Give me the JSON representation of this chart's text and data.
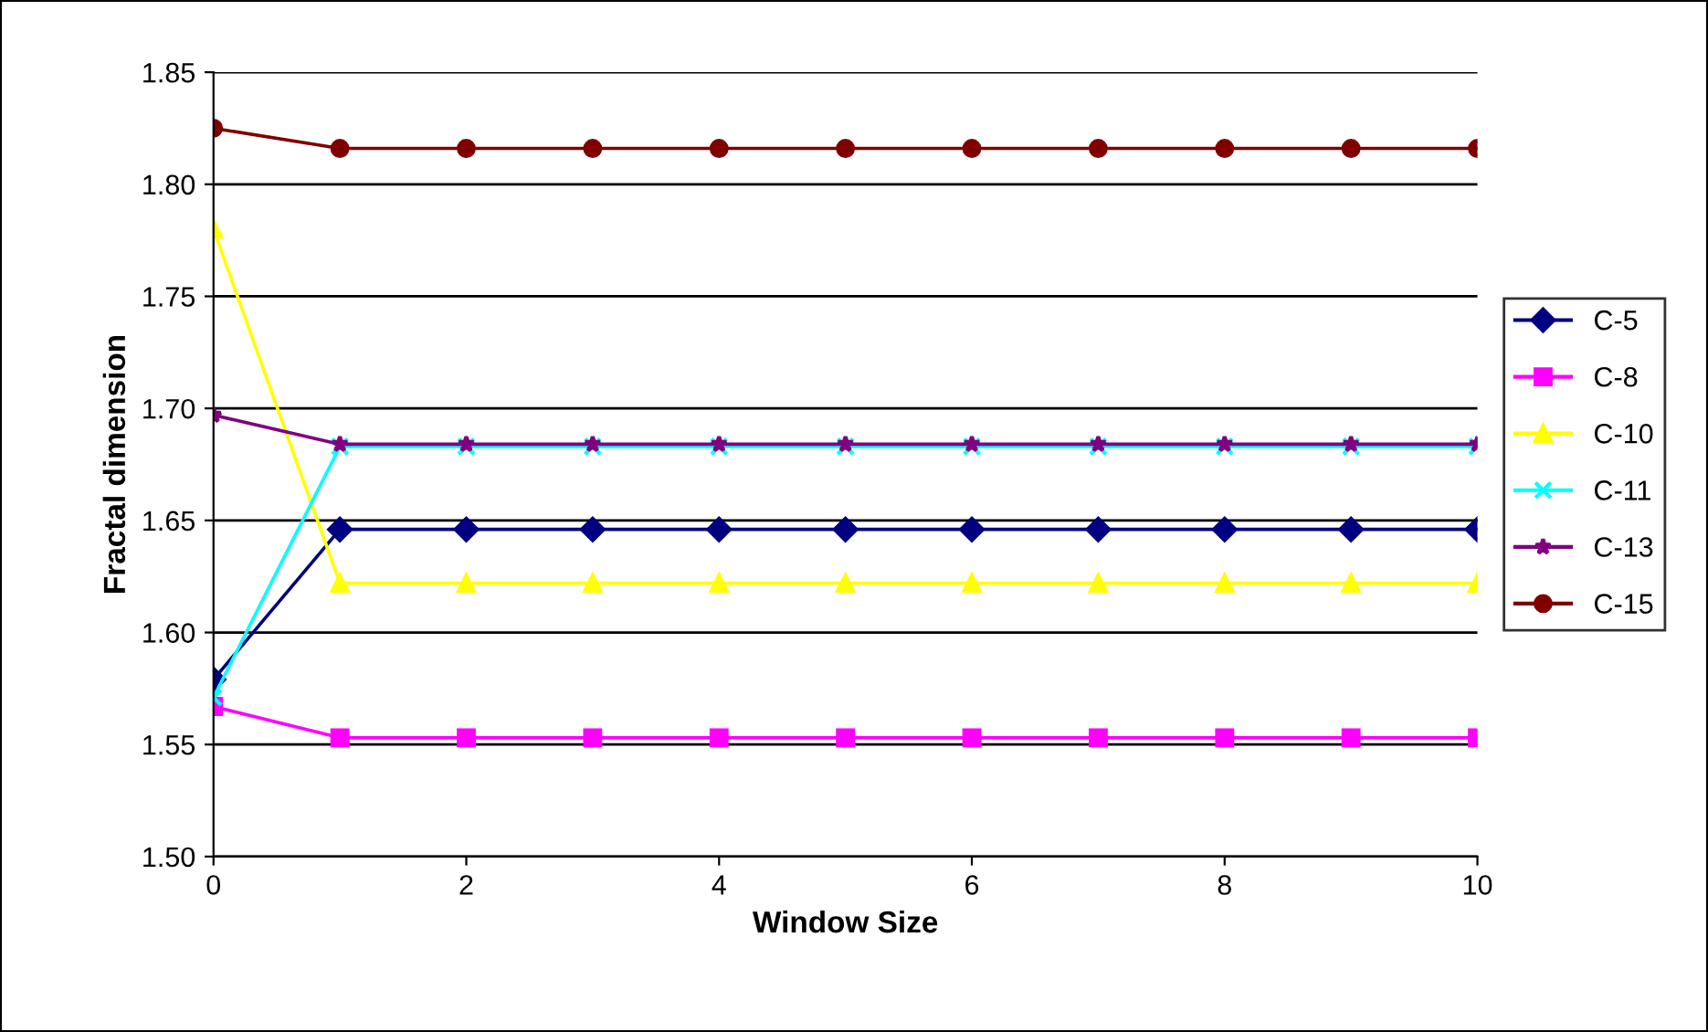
{
  "chart_data": {
    "type": "line",
    "xlabel": "Window Size",
    "ylabel": "Fractal dimension",
    "x": [
      0,
      1,
      2,
      3,
      4,
      5,
      6,
      7,
      8,
      9,
      10
    ],
    "xlim": [
      0,
      10
    ],
    "xticks": [
      0,
      2,
      4,
      6,
      8,
      10
    ],
    "ylim": [
      1.5,
      1.85
    ],
    "yticks": [
      {
        "value": 1.5,
        "label": "1.50"
      },
      {
        "value": 1.55,
        "label": "1.55"
      },
      {
        "value": 1.6,
        "label": "1.60"
      },
      {
        "value": 1.65,
        "label": "1.65"
      },
      {
        "value": 1.7,
        "label": "1.70"
      },
      {
        "value": 1.75,
        "label": "1.75"
      },
      {
        "value": 1.8,
        "label": "1.80"
      },
      {
        "value": 1.85,
        "label": "1.85"
      }
    ],
    "grid": "y",
    "legend": "right",
    "line_style": "solid",
    "series": [
      {
        "name": "C-5",
        "color": "#000080",
        "marker": "diamond",
        "values": [
          1.579,
          1.646,
          1.646,
          1.646,
          1.646,
          1.646,
          1.646,
          1.646,
          1.646,
          1.646,
          1.646
        ]
      },
      {
        "name": "C-8",
        "color": "#ff00ff",
        "marker": "square",
        "values": [
          1.567,
          1.553,
          1.553,
          1.553,
          1.553,
          1.553,
          1.553,
          1.553,
          1.553,
          1.553,
          1.553
        ]
      },
      {
        "name": "C-10",
        "color": "#ffff00",
        "marker": "triangle",
        "values": [
          1.78,
          1.622,
          1.622,
          1.622,
          1.622,
          1.622,
          1.622,
          1.622,
          1.622,
          1.622,
          1.622
        ]
      },
      {
        "name": "C-11",
        "color": "#00ffff",
        "marker": "cross",
        "values": [
          1.571,
          1.683,
          1.683,
          1.683,
          1.683,
          1.683,
          1.683,
          1.683,
          1.683,
          1.683,
          1.683
        ]
      },
      {
        "name": "C-13",
        "color": "#800080",
        "marker": "star",
        "values": [
          1.697,
          1.684,
          1.684,
          1.684,
          1.684,
          1.684,
          1.684,
          1.684,
          1.684,
          1.684,
          1.684
        ]
      },
      {
        "name": "C-15",
        "color": "#800000",
        "marker": "circle",
        "values": [
          1.825,
          1.816,
          1.816,
          1.816,
          1.816,
          1.816,
          1.816,
          1.816,
          1.816,
          1.816,
          1.816
        ]
      }
    ]
  }
}
